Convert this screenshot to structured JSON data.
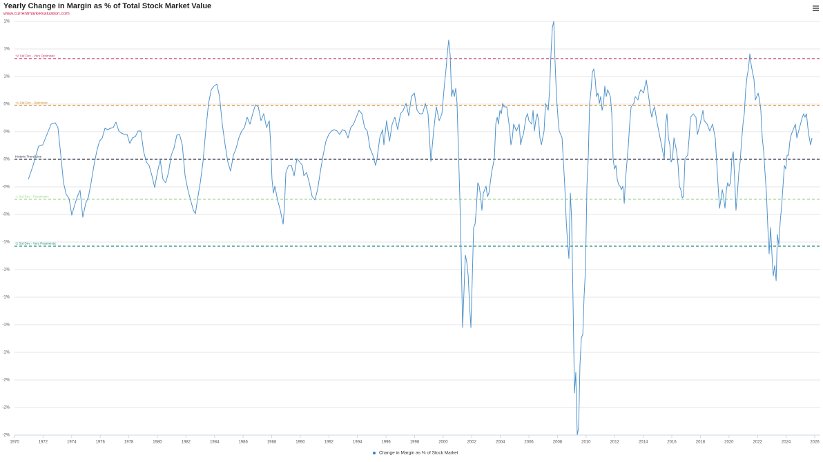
{
  "chart_data": {
    "type": "line",
    "title": "Yearly Change in Margin as % of Total Stock Market Value",
    "subtitle": "www.currentmarketvaluation.com",
    "xlim": [
      1970,
      2026
    ],
    "xticks": [
      1970,
      1972,
      1974,
      1976,
      1978,
      1980,
      1982,
      1984,
      1986,
      1988,
      1990,
      1992,
      1994,
      1996,
      1998,
      2000,
      2002,
      2004,
      2006,
      2008,
      2010,
      2012,
      2014,
      2016,
      2018,
      2020,
      2022,
      2024,
      2026
    ],
    "ylim": [
      -1.95,
      1.05
    ],
    "yticks": [
      {
        "value": 1.05,
        "label": "1%"
      },
      {
        "value": 0.85,
        "label": "1%"
      },
      {
        "value": 0.65,
        "label": "1%"
      },
      {
        "value": 0.45,
        "label": "0%"
      },
      {
        "value": 0.25,
        "label": "0%"
      },
      {
        "value": 0.05,
        "label": "0%"
      },
      {
        "value": -0.15,
        "label": "-0%"
      },
      {
        "value": -0.35,
        "label": "-0%"
      },
      {
        "value": -0.55,
        "label": "-1%"
      },
      {
        "value": -0.75,
        "label": "-1%"
      },
      {
        "value": -0.95,
        "label": "-1%"
      },
      {
        "value": -1.15,
        "label": "-1%"
      },
      {
        "value": -1.35,
        "label": "-1%"
      },
      {
        "value": -1.55,
        "label": "-2%"
      },
      {
        "value": -1.75,
        "label": "-2%"
      },
      {
        "value": -1.95,
        "label": "-2%"
      }
    ],
    "grid": true,
    "plot_lines": [
      {
        "label": "+2 Std Dev - Very Optimistic",
        "value": 0.78,
        "color": "#c8365e"
      },
      {
        "label": "+1 Std Dev - Optimistic",
        "value": 0.44,
        "color": "#dc8c2c"
      },
      {
        "label": "Historic Trend Line",
        "value": 0.05,
        "color": "#2b2f45"
      },
      {
        "label": "-1 Std Dev - Pessimistic",
        "value": -0.24,
        "color": "#9fd98c"
      },
      {
        "label": "-2 Std Dev - Very Pessimistic",
        "value": -0.58,
        "color": "#1b8a7c"
      }
    ],
    "x": [
      1970.97,
      1971.3,
      1971.5,
      1971.69,
      1971.98,
      1972.27,
      1972.56,
      1972.85,
      1973.04,
      1973.24,
      1973.43,
      1973.62,
      1973.82,
      1974.01,
      1974.2,
      1974.4,
      1974.59,
      1974.78,
      1974.98,
      1975.17,
      1975.36,
      1975.56,
      1975.75,
      1975.94,
      1976.14,
      1976.33,
      1976.52,
      1976.72,
      1976.91,
      1977.1,
      1977.3,
      1977.49,
      1977.68,
      1977.88,
      1978.07,
      1978.26,
      1978.46,
      1978.65,
      1978.84,
      1979.04,
      1979.23,
      1979.42,
      1979.62,
      1979.81,
      1980.0,
      1980.2,
      1980.39,
      1980.58,
      1980.78,
      1980.97,
      1981.16,
      1981.36,
      1981.55,
      1981.74,
      1981.94,
      1982.13,
      1982.32,
      1982.52,
      1982.66,
      1982.8,
      1983.0,
      1983.19,
      1983.38,
      1983.58,
      1983.77,
      1983.96,
      1984.16,
      1984.35,
      1984.54,
      1984.74,
      1984.93,
      1985.12,
      1985.32,
      1985.51,
      1985.7,
      1985.9,
      1986.09,
      1986.28,
      1986.48,
      1986.67,
      1986.86,
      1987.06,
      1987.25,
      1987.44,
      1987.64,
      1987.83,
      1987.93,
      1988.02,
      1988.12,
      1988.22,
      1988.41,
      1988.6,
      1988.8,
      1988.89,
      1988.99,
      1989.18,
      1989.38,
      1989.57,
      1989.76,
      1989.96,
      1990.15,
      1990.25,
      1990.44,
      1990.63,
      1990.83,
      1991.02,
      1991.21,
      1991.41,
      1991.6,
      1991.79,
      1991.99,
      1992.18,
      1992.37,
      1992.57,
      1992.76,
      1992.95,
      1993.15,
      1993.34,
      1993.53,
      1993.73,
      1993.92,
      1994.11,
      1994.31,
      1994.5,
      1994.69,
      1994.88,
      1995.08,
      1995.27,
      1995.37,
      1995.56,
      1995.76,
      1995.85,
      1996.04,
      1996.24,
      1996.43,
      1996.62,
      1996.82,
      1997.01,
      1997.2,
      1997.4,
      1997.59,
      1997.78,
      1997.98,
      1998.17,
      1998.36,
      1998.56,
      1998.75,
      1998.94,
      1999.14,
      1999.33,
      1999.52,
      1999.72,
      1999.91,
      2000.1,
      2000.2,
      2000.3,
      2000.39,
      2000.49,
      2000.59,
      2000.68,
      2000.78,
      2000.88,
      2000.97,
      2001.07,
      2001.17,
      2001.26,
      2001.36,
      2001.46,
      2001.55,
      2001.65,
      2001.75,
      2001.84,
      2001.94,
      2002.04,
      2002.13,
      2002.23,
      2002.33,
      2002.42,
      2002.52,
      2002.62,
      2002.71,
      2002.81,
      2002.91,
      2003.0,
      2003.1,
      2003.2,
      2003.39,
      2003.58,
      2003.68,
      2003.78,
      2003.87,
      2003.97,
      2004.07,
      2004.16,
      2004.26,
      2004.45,
      2004.64,
      2004.74,
      2004.84,
      2004.93,
      2005.03,
      2005.13,
      2005.32,
      2005.42,
      2005.52,
      2005.61,
      2005.8,
      2005.9,
      2006.0,
      2006.19,
      2006.29,
      2006.38,
      2006.48,
      2006.58,
      2006.68,
      2006.77,
      2006.87,
      2007.06,
      2007.16,
      2007.35,
      2007.45,
      2007.54,
      2007.64,
      2007.74,
      2007.83,
      2007.93,
      2008.03,
      2008.12,
      2008.32,
      2008.51,
      2008.61,
      2008.7,
      2008.8,
      2008.9,
      2008.99,
      2009.09,
      2009.19,
      2009.28,
      2009.38,
      2009.48,
      2009.57,
      2009.67,
      2009.77,
      2009.86,
      2009.96,
      2010.06,
      2010.15,
      2010.25,
      2010.35,
      2010.44,
      2010.54,
      2010.64,
      2010.73,
      2010.83,
      2010.93,
      2011.02,
      2011.12,
      2011.22,
      2011.31,
      2011.41,
      2011.51,
      2011.7,
      2011.8,
      2011.89,
      2011.99,
      2012.09,
      2012.18,
      2012.28,
      2012.38,
      2012.47,
      2012.57,
      2012.67,
      2012.76,
      2012.96,
      2013.05,
      2013.15,
      2013.34,
      2013.44,
      2013.63,
      2013.73,
      2013.83,
      2014.02,
      2014.12,
      2014.21,
      2014.31,
      2014.41,
      2014.5,
      2014.6,
      2014.7,
      2014.79,
      2014.99,
      2015.18,
      2015.37,
      2015.47,
      2015.57,
      2015.66,
      2015.76,
      2015.86,
      2015.95,
      2016.05,
      2016.15,
      2016.34,
      2016.44,
      2016.53,
      2016.63,
      2016.73,
      2016.82,
      2016.92,
      2017.11,
      2017.21,
      2017.31,
      2017.5,
      2017.69,
      2017.79,
      2017.98,
      2018.18,
      2018.27,
      2018.47,
      2018.56,
      2018.66,
      2018.85,
      2019.04,
      2019.24,
      2019.34,
      2019.43,
      2019.53,
      2019.62,
      2019.72,
      2019.82,
      2019.91,
      2020.01,
      2020.11,
      2020.2,
      2020.3,
      2020.4,
      2020.49,
      2020.59,
      2020.69,
      2020.78,
      2020.88,
      2020.98,
      2021.07,
      2021.17,
      2021.27,
      2021.36,
      2021.46,
      2021.56,
      2021.65,
      2021.75,
      2021.85,
      2021.94,
      2022.04,
      2022.14,
      2022.23,
      2022.33,
      2022.43,
      2022.52,
      2022.62,
      2022.72,
      2022.81,
      2022.91,
      2023.01,
      2023.1,
      2023.2,
      2023.3,
      2023.39,
      2023.49,
      2023.59,
      2023.68,
      2023.78,
      2023.88,
      2023.97,
      2024.07,
      2024.17,
      2024.26,
      2024.36,
      2024.46,
      2024.55,
      2024.65,
      2024.75,
      2024.94,
      2025.13,
      2025.23,
      2025.32,
      2025.42,
      2025.52,
      2025.62,
      2025.71,
      2025.81
    ],
    "series": [
      {
        "name": "Change in Margin as % of Stock Market",
        "color": "#4f93cc",
        "values": [
          -0.095,
          0.005,
          0.08,
          0.145,
          0.155,
          0.23,
          0.305,
          0.315,
          0.28,
          0.08,
          -0.12,
          -0.205,
          -0.235,
          -0.355,
          -0.285,
          -0.22,
          -0.175,
          -0.37,
          -0.27,
          -0.225,
          -0.12,
          0.005,
          0.105,
          0.18,
          0.205,
          0.275,
          0.265,
          0.275,
          0.28,
          0.32,
          0.255,
          0.24,
          0.23,
          0.23,
          0.165,
          0.205,
          0.215,
          0.255,
          0.255,
          0.105,
          0.03,
          0.005,
          -0.07,
          -0.155,
          -0.045,
          0.045,
          -0.095,
          -0.12,
          -0.045,
          0.08,
          0.13,
          0.225,
          0.23,
          0.155,
          -0.07,
          -0.17,
          -0.245,
          -0.32,
          -0.345,
          -0.245,
          -0.12,
          0.03,
          0.255,
          0.455,
          0.555,
          0.58,
          0.595,
          0.505,
          0.305,
          0.155,
          0.03,
          -0.035,
          0.08,
          0.13,
          0.205,
          0.255,
          0.28,
          0.355,
          0.305,
          0.38,
          0.445,
          0.43,
          0.33,
          0.38,
          0.28,
          0.33,
          0.155,
          -0.095,
          -0.195,
          -0.145,
          -0.245,
          -0.32,
          -0.42,
          -0.295,
          -0.045,
          0.005,
          0.005,
          -0.07,
          0.055,
          0.03,
          0.005,
          -0.07,
          -0.045,
          -0.12,
          -0.22,
          -0.245,
          -0.17,
          -0.035,
          0.08,
          0.18,
          0.23,
          0.255,
          0.265,
          0.255,
          0.23,
          0.265,
          0.255,
          0.205,
          0.28,
          0.305,
          0.355,
          0.405,
          0.38,
          0.28,
          0.255,
          0.13,
          0.08,
          0.005,
          0.055,
          0.205,
          0.265,
          0.155,
          0.33,
          0.18,
          0.305,
          0.355,
          0.265,
          0.38,
          0.405,
          0.455,
          0.365,
          0.505,
          0.53,
          0.405,
          0.38,
          0.38,
          0.455,
          0.38,
          0.035,
          0.255,
          0.43,
          0.33,
          0.38,
          0.605,
          0.705,
          0.83,
          0.915,
          0.805,
          0.505,
          0.555,
          0.505,
          0.565,
          0.455,
          0.105,
          -0.245,
          -0.645,
          -1.17,
          -0.895,
          -0.645,
          -0.695,
          -0.795,
          -0.995,
          -1.17,
          -0.795,
          -0.445,
          -0.42,
          -0.295,
          -0.12,
          -0.145,
          -0.22,
          -0.32,
          -0.195,
          -0.17,
          -0.145,
          -0.22,
          -0.195,
          -0.045,
          0.055,
          0.305,
          0.355,
          0.305,
          0.405,
          0.38,
          0.455,
          0.43,
          0.43,
          0.28,
          0.155,
          0.205,
          0.305,
          0.28,
          0.255,
          0.305,
          0.155,
          0.205,
          0.23,
          0.355,
          0.38,
          0.33,
          0.305,
          0.405,
          0.255,
          0.33,
          0.38,
          0.33,
          0.205,
          0.155,
          0.255,
          0.455,
          0.405,
          0.555,
          0.805,
          1.005,
          1.05,
          0.755,
          0.505,
          0.355,
          0.255,
          0.205,
          -0.145,
          -0.395,
          -0.545,
          -0.67,
          -0.195,
          -0.395,
          -0.995,
          -1.645,
          -1.495,
          -1.95,
          -1.895,
          -1.445,
          -1.245,
          -1.22,
          -0.945,
          -0.745,
          -0.145,
          0.055,
          0.455,
          0.555,
          0.68,
          0.705,
          0.63,
          0.505,
          0.53,
          0.455,
          0.505,
          0.405,
          0.455,
          0.58,
          0.505,
          0.555,
          0.505,
          0.38,
          0.055,
          -0.02,
          0.005,
          -0.095,
          -0.135,
          -0.145,
          -0.17,
          -0.145,
          -0.27,
          -0.095,
          0.155,
          0.305,
          0.43,
          0.455,
          0.505,
          0.48,
          0.53,
          0.555,
          0.53,
          0.58,
          0.625,
          0.555,
          0.48,
          0.405,
          0.355,
          0.405,
          0.43,
          0.305,
          0.205,
          0.105,
          0.055,
          0.305,
          0.38,
          0.205,
          0.155,
          0.03,
          0.055,
          0.205,
          0.105,
          0.005,
          -0.145,
          -0.17,
          -0.23,
          -0.22,
          0.055,
          0.08,
          0.205,
          0.355,
          0.38,
          0.355,
          0.23,
          0.305,
          0.405,
          0.33,
          0.305,
          0.28,
          0.255,
          0.305,
          0.205,
          -0.145,
          -0.305,
          -0.245,
          -0.17,
          -0.22,
          -0.305,
          -0.17,
          -0.12,
          -0.145,
          -0.12,
          0.055,
          0.105,
          -0.095,
          -0.32,
          -0.195,
          -0.045,
          0.03,
          0.18,
          0.305,
          0.38,
          0.555,
          0.655,
          0.705,
          0.815,
          0.73,
          0.68,
          0.63,
          0.48,
          0.505,
          0.53,
          0.48,
          0.405,
          0.205,
          0.105,
          -0.045,
          -0.195,
          -0.445,
          -0.635,
          -0.445,
          -0.645,
          -0.795,
          -0.72,
          -0.83,
          -0.495,
          -0.57,
          -0.395,
          -0.295,
          -0.145,
          0.005,
          -0.02,
          0.08,
          0.08,
          0.18,
          0.23,
          0.255,
          0.28,
          0.305,
          0.205,
          0.28,
          0.355,
          0.38,
          0.355,
          0.38,
          0.28,
          0.205,
          0.155,
          0.205
        ]
      }
    ]
  }
}
